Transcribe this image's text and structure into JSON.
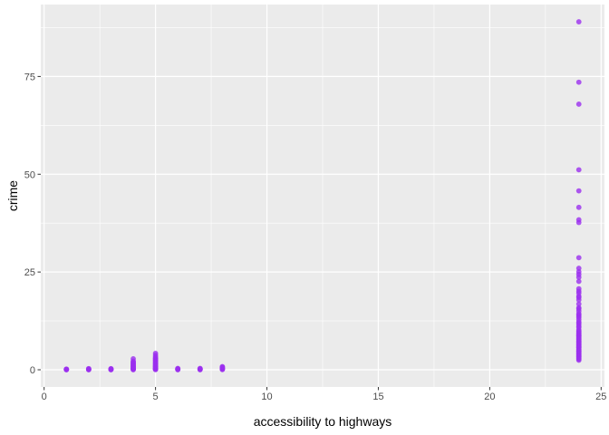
{
  "chart_data": {
    "type": "scatter",
    "title": "",
    "xlabel": "accessibility to highways",
    "ylabel": "crime",
    "xlim": [
      -0.15,
      25.15
    ],
    "ylim": [
      -4.4,
      93.4
    ],
    "x_ticks": [
      0,
      5,
      10,
      15,
      20,
      25
    ],
    "x_tick_labels": [
      "0",
      "5",
      "10",
      "15",
      "20",
      "25"
    ],
    "y_ticks": [
      0,
      25,
      50,
      75
    ],
    "y_tick_labels": [
      "0",
      "25",
      "50",
      "75"
    ],
    "grid": true,
    "legend": "none",
    "point_color": "#9b30ef",
    "panel_background": "#ebebeb",
    "points": [
      [
        1,
        0.01
      ],
      [
        1,
        0.04
      ],
      [
        1,
        0.08
      ],
      [
        1,
        0.12
      ],
      [
        1,
        0.18
      ],
      [
        2,
        0.02
      ],
      [
        2,
        0.05
      ],
      [
        2,
        0.1
      ],
      [
        2,
        0.2
      ],
      [
        2,
        0.3
      ],
      [
        3,
        0.01
      ],
      [
        3,
        0.05
      ],
      [
        3,
        0.12
      ],
      [
        3,
        0.2
      ],
      [
        3,
        0.28
      ],
      [
        4,
        0.02
      ],
      [
        4,
        0.1
      ],
      [
        4,
        0.2
      ],
      [
        4,
        0.3
      ],
      [
        4,
        0.45
      ],
      [
        4,
        0.6
      ],
      [
        4,
        0.75
      ],
      [
        4,
        0.9
      ],
      [
        4,
        1.05
      ],
      [
        4,
        1.2
      ],
      [
        4,
        1.4
      ],
      [
        4,
        1.6
      ],
      [
        4,
        1.8
      ],
      [
        4,
        2.0
      ],
      [
        4,
        2.2
      ],
      [
        4,
        2.8
      ],
      [
        5,
        0.03
      ],
      [
        5,
        0.1
      ],
      [
        5,
        0.2
      ],
      [
        5,
        0.3
      ],
      [
        5,
        0.45
      ],
      [
        5,
        0.6
      ],
      [
        5,
        0.75
      ],
      [
        5,
        0.9
      ],
      [
        5,
        1.05
      ],
      [
        5,
        1.2
      ],
      [
        5,
        1.4
      ],
      [
        5,
        1.6
      ],
      [
        5,
        1.8
      ],
      [
        5,
        2.0
      ],
      [
        5,
        2.2
      ],
      [
        5,
        2.4
      ],
      [
        5,
        2.6
      ],
      [
        5,
        2.8
      ],
      [
        5,
        3.0
      ],
      [
        5,
        3.3
      ],
      [
        5,
        3.7
      ],
      [
        5,
        4.2
      ],
      [
        6,
        0.02
      ],
      [
        6,
        0.08
      ],
      [
        6,
        0.15
      ],
      [
        6,
        0.25
      ],
      [
        6,
        0.35
      ],
      [
        7,
        0.02
      ],
      [
        7,
        0.08
      ],
      [
        7,
        0.15
      ],
      [
        7,
        0.25
      ],
      [
        7,
        0.35
      ],
      [
        8,
        0.05
      ],
      [
        8,
        0.15
      ],
      [
        8,
        0.25
      ],
      [
        8,
        0.35
      ],
      [
        8,
        0.5
      ],
      [
        8,
        0.65
      ],
      [
        8,
        0.8
      ],
      [
        24,
        88.98
      ],
      [
        24,
        73.53
      ],
      [
        24,
        67.92
      ],
      [
        24,
        51.14
      ],
      [
        24,
        45.75
      ],
      [
        24,
        41.53
      ],
      [
        24,
        38.35
      ],
      [
        24,
        37.66
      ],
      [
        24,
        28.66
      ],
      [
        24,
        25.95
      ],
      [
        24,
        25.05
      ],
      [
        24,
        24.39
      ],
      [
        24,
        23.65
      ],
      [
        24,
        22.6
      ],
      [
        24,
        20.7
      ],
      [
        24,
        20.08
      ],
      [
        24,
        19.61
      ],
      [
        24,
        18.81
      ],
      [
        24,
        18.5
      ],
      [
        24,
        17.87
      ],
      [
        24,
        16.81
      ],
      [
        24,
        15.88
      ],
      [
        24,
        15.58
      ],
      [
        24,
        15.02
      ],
      [
        24,
        14.33
      ],
      [
        24,
        14.05
      ],
      [
        24,
        13.68
      ],
      [
        24,
        13.36
      ],
      [
        24,
        12.8
      ],
      [
        24,
        12.25
      ],
      [
        24,
        11.95
      ],
      [
        24,
        11.58
      ],
      [
        24,
        11.11
      ],
      [
        24,
        10.83
      ],
      [
        24,
        10.23
      ],
      [
        24,
        9.92
      ],
      [
        24,
        9.72
      ],
      [
        24,
        9.34
      ],
      [
        24,
        9.19
      ],
      [
        24,
        8.98
      ],
      [
        24,
        8.79
      ],
      [
        24,
        8.64
      ],
      [
        24,
        8.49
      ],
      [
        24,
        8.27
      ],
      [
        24,
        8.05
      ],
      [
        24,
        7.84
      ],
      [
        24,
        7.67
      ],
      [
        24,
        7.4
      ],
      [
        24,
        7.22
      ],
      [
        24,
        7.05
      ],
      [
        24,
        6.8
      ],
      [
        24,
        6.65
      ],
      [
        24,
        6.44
      ],
      [
        24,
        6.29
      ],
      [
        24,
        6.01
      ],
      [
        24,
        5.82
      ],
      [
        24,
        5.69
      ],
      [
        24,
        5.58
      ],
      [
        24,
        5.29
      ],
      [
        24,
        5.09
      ],
      [
        24,
        4.87
      ],
      [
        24,
        4.75
      ],
      [
        24,
        4.66
      ],
      [
        24,
        4.42
      ],
      [
        24,
        4.22
      ],
      [
        24,
        4.03
      ],
      [
        24,
        3.85
      ],
      [
        24,
        3.69
      ],
      [
        24,
        3.47
      ],
      [
        24,
        3.32
      ],
      [
        24,
        3.16
      ],
      [
        24,
        2.92
      ],
      [
        24,
        2.73
      ],
      [
        24,
        2.45
      ]
    ]
  }
}
